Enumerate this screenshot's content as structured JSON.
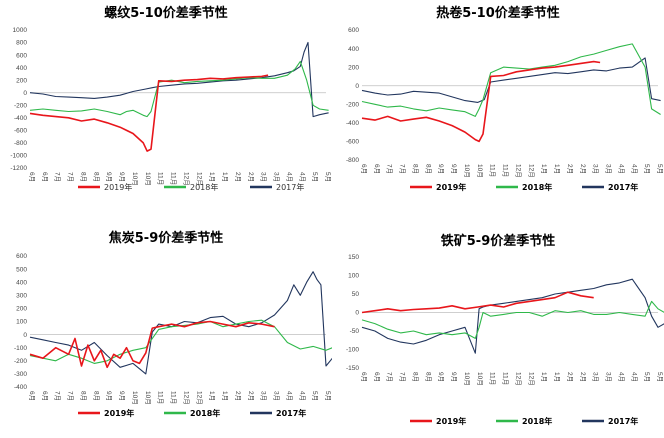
{
  "colors": {
    "y2019": "#e8161b",
    "y2018": "#2fb84a",
    "y2017": "#22365e",
    "zero": "#bfbfbf"
  },
  "chart_data": [
    {
      "id": "rebar",
      "type": "line",
      "title": "螺纹5-10价差季节性",
      "yticks": [
        "1000",
        "800",
        "600",
        "400",
        "200",
        "0",
        "-200",
        "-400",
        "-600",
        "-800",
        "-1000",
        "-1200"
      ],
      "ylim": [
        -1200,
        1000
      ],
      "xticks": [
        "6月",
        "6月",
        "7月",
        "7月",
        "8月",
        "8月",
        "9月",
        "9月",
        "10月",
        "10月",
        "11月",
        "11月",
        "12月",
        "12月",
        "1月",
        "1月",
        "2月",
        "2月",
        "3月",
        "3月",
        "4月",
        "4月",
        "5月",
        "5月"
      ],
      "legend": [
        "2019年",
        "2018年",
        "2017年"
      ],
      "legend_bold": false,
      "series": [
        {
          "name": "2019年",
          "color_key": "y2019",
          "x": [
            0,
            1,
            2,
            3,
            4,
            5,
            6,
            7,
            8,
            8.8,
            9.1,
            9.4,
            10,
            11,
            12,
            13,
            14,
            15,
            16,
            17,
            18,
            18.5
          ],
          "y": [
            -330,
            -360,
            -380,
            -400,
            -450,
            -420,
            -480,
            -550,
            -650,
            -800,
            -930,
            -900,
            190,
            180,
            200,
            210,
            230,
            220,
            240,
            250,
            260,
            280
          ]
        },
        {
          "name": "2018年",
          "color_key": "y2018",
          "x": [
            0,
            1,
            2,
            3,
            4,
            5,
            6,
            7,
            7.5,
            8,
            8.8,
            9.1,
            9.4,
            10,
            11,
            12,
            13,
            14,
            15,
            16,
            17,
            18,
            19,
            20,
            20.6,
            21,
            21.5,
            22,
            22.5,
            23.2
          ],
          "y": [
            -280,
            -260,
            -280,
            -300,
            -290,
            -260,
            -300,
            -350,
            -300,
            -280,
            -360,
            -380,
            -300,
            170,
            200,
            160,
            180,
            190,
            200,
            220,
            240,
            230,
            230,
            280,
            380,
            500,
            200,
            -200,
            -260,
            -280
          ]
        },
        {
          "name": "2017年",
          "color_key": "y2017",
          "x": [
            0,
            1,
            2,
            3,
            4,
            5,
            6,
            7,
            8,
            9,
            9.5,
            10,
            11,
            12,
            13,
            14,
            15,
            16,
            17,
            18,
            19,
            20,
            20.5,
            21,
            21.3,
            21.6,
            22,
            22.5,
            23.2
          ],
          "y": [
            0,
            -20,
            -60,
            -70,
            -80,
            -90,
            -70,
            -40,
            20,
            60,
            80,
            100,
            120,
            140,
            150,
            170,
            190,
            200,
            220,
            240,
            270,
            320,
            350,
            420,
            650,
            800,
            -380,
            -350,
            -320
          ]
        }
      ]
    },
    {
      "id": "hrc",
      "type": "line",
      "title": "热卷5-10价差季节性",
      "yticks": [
        "600",
        "400",
        "200",
        "0",
        "-200",
        "-400",
        "-600",
        "-800"
      ],
      "ylim": [
        -800,
        600
      ],
      "xticks": [
        "6月",
        "6月",
        "7月",
        "7月",
        "8月",
        "8月",
        "9月",
        "9月",
        "10月",
        "10月",
        "11月",
        "11月",
        "12月",
        "12月",
        "1月",
        "1月",
        "2月",
        "2月",
        "3月",
        "3月",
        "4月",
        "4月",
        "5月",
        "5月"
      ],
      "legend": [
        "2019年",
        "2018年",
        "2017年"
      ],
      "legend_bold": true,
      "series": [
        {
          "name": "2019年",
          "color_key": "y2019",
          "x": [
            0,
            1,
            2,
            3,
            4,
            5,
            6,
            7,
            8,
            8.8,
            9.1,
            9.4,
            10,
            11,
            12,
            13,
            14,
            15,
            16,
            17,
            18,
            18.5
          ],
          "y": [
            -350,
            -370,
            -330,
            -380,
            -360,
            -340,
            -380,
            -430,
            -500,
            -580,
            -600,
            -520,
            100,
            110,
            150,
            170,
            190,
            200,
            220,
            240,
            260,
            250
          ]
        },
        {
          "name": "2018年",
          "color_key": "y2018",
          "x": [
            0,
            1,
            2,
            3,
            4,
            5,
            6,
            7,
            8,
            8.8,
            9.1,
            9.4,
            10,
            11,
            12,
            13,
            14,
            15,
            16,
            17,
            18,
            19,
            20,
            21,
            22,
            22.5,
            23.2
          ],
          "y": [
            -170,
            -200,
            -230,
            -220,
            -250,
            -270,
            -240,
            -260,
            -280,
            -330,
            -250,
            -150,
            140,
            200,
            190,
            180,
            200,
            220,
            260,
            310,
            340,
            380,
            420,
            450,
            200,
            -250,
            -310
          ]
        },
        {
          "name": "2017年",
          "color_key": "y2017",
          "x": [
            0,
            1,
            2,
            3,
            4,
            5,
            6,
            7,
            8,
            9,
            9.5,
            10,
            11,
            12,
            13,
            14,
            15,
            16,
            17,
            18,
            19,
            20,
            21,
            22,
            22.5,
            23.2
          ],
          "y": [
            -50,
            -80,
            -100,
            -90,
            -60,
            -70,
            -80,
            -120,
            -160,
            -180,
            -150,
            40,
            60,
            80,
            100,
            120,
            140,
            130,
            150,
            170,
            160,
            190,
            200,
            300,
            -140,
            -160
          ]
        }
      ]
    },
    {
      "id": "coke",
      "type": "line",
      "title": "焦炭5-9价差季节性",
      "yticks": [
        "600",
        "500",
        "400",
        "300",
        "200",
        "100",
        "0",
        "-100",
        "-200",
        "-300",
        "-400"
      ],
      "ylim": [
        -400,
        600
      ],
      "xticks": [
        "6月",
        "6月",
        "7月",
        "7月",
        "8月",
        "8月",
        "9月",
        "9月",
        "10月",
        "10月",
        "11月",
        "11月",
        "12月",
        "12月",
        "1月",
        "1月",
        "2月",
        "2月",
        "3月",
        "3月",
        "4月",
        "4月",
        "5月",
        "5月"
      ],
      "legend": [
        "2019年",
        "2018年",
        "2017年"
      ],
      "legend_bold": true,
      "series": [
        {
          "name": "2019年",
          "color_key": "y2019",
          "x": [
            0,
            1,
            2,
            3,
            3.5,
            4,
            4.5,
            5,
            5.5,
            6,
            6.5,
            7,
            7.5,
            8,
            8.5,
            9,
            9.5,
            10,
            11,
            12,
            13,
            14,
            15,
            16,
            17,
            18,
            19
          ],
          "y": [
            -150,
            -180,
            -100,
            -150,
            -30,
            -240,
            -80,
            -200,
            -120,
            -250,
            -150,
            -180,
            -100,
            -200,
            -220,
            -140,
            50,
            60,
            80,
            60,
            90,
            100,
            80,
            60,
            90,
            80,
            60
          ]
        },
        {
          "name": "2018年",
          "color_key": "y2018",
          "x": [
            0,
            1,
            2,
            3,
            4,
            5,
            6,
            7,
            8,
            9,
            10,
            11,
            12,
            13,
            14,
            15,
            16,
            17,
            18,
            19,
            20,
            21,
            22,
            23,
            23.5
          ],
          "y": [
            -160,
            -180,
            -200,
            -150,
            -180,
            -220,
            -200,
            -150,
            -120,
            -100,
            40,
            60,
            70,
            80,
            100,
            60,
            80,
            100,
            110,
            60,
            -60,
            -110,
            -90,
            -120,
            -100
          ]
        },
        {
          "name": "2017年",
          "color_key": "y2017",
          "x": [
            0,
            1,
            2,
            3,
            4,
            5,
            6,
            7,
            8,
            9,
            9.5,
            10,
            11,
            12,
            13,
            14,
            15,
            16,
            17,
            18,
            19,
            20,
            20.5,
            21,
            21.5,
            22,
            22.3,
            22.6,
            23,
            23.5
          ],
          "y": [
            -20,
            -40,
            -60,
            -80,
            -120,
            -60,
            -160,
            -250,
            -220,
            -300,
            20,
            80,
            60,
            100,
            90,
            130,
            140,
            80,
            60,
            90,
            150,
            260,
            380,
            300,
            400,
            480,
            420,
            380,
            -240,
            -180
          ]
        }
      ]
    },
    {
      "id": "ore",
      "type": "line",
      "title": "铁矿5-9价差季节性",
      "yticks": [
        "150",
        "100",
        "50",
        "0",
        "-50",
        "-100",
        "-150"
      ],
      "ylim": [
        -150,
        150
      ],
      "xticks": [
        "6月",
        "6月",
        "7月",
        "7月",
        "8月",
        "8月",
        "9月",
        "9月",
        "10月",
        "10月",
        "11月",
        "11月",
        "12月",
        "12月",
        "1月",
        "1月",
        "2月",
        "2月",
        "3月",
        "3月",
        "4月",
        "4月",
        "5月",
        "5月"
      ],
      "legend": [
        "2019年",
        "2018年",
        "2017年"
      ],
      "legend_bold": true,
      "series": [
        {
          "name": "2019年",
          "color_key": "y2019",
          "x": [
            0,
            1,
            2,
            3,
            4,
            5,
            6,
            7,
            8,
            9,
            10,
            11,
            12,
            13,
            14,
            15,
            16,
            17,
            18
          ],
          "y": [
            0,
            5,
            10,
            5,
            8,
            10,
            12,
            18,
            10,
            15,
            20,
            15,
            25,
            30,
            35,
            40,
            55,
            45,
            40
          ]
        },
        {
          "name": "2018年",
          "color_key": "y2018",
          "x": [
            0,
            1,
            2,
            3,
            4,
            5,
            6,
            7,
            8,
            8.8,
            9.1,
            9.4,
            10,
            11,
            12,
            13,
            14,
            15,
            16,
            17,
            18,
            19,
            20,
            21,
            22,
            22.5,
            23,
            23.5
          ],
          "y": [
            -20,
            -30,
            -45,
            -55,
            -50,
            -60,
            -55,
            -60,
            -55,
            -70,
            -40,
            0,
            -10,
            -5,
            0,
            0,
            -10,
            5,
            0,
            5,
            -5,
            -5,
            0,
            -5,
            -10,
            30,
            10,
            0
          ]
        },
        {
          "name": "2017年",
          "color_key": "y2017",
          "x": [
            0,
            1,
            2,
            3,
            4,
            5,
            6,
            7,
            8,
            8.8,
            9.1,
            9.4,
            10,
            11,
            12,
            13,
            14,
            15,
            16,
            17,
            18,
            19,
            20,
            21,
            22,
            22.5,
            23,
            23.5
          ],
          "y": [
            -40,
            -50,
            -70,
            -80,
            -85,
            -75,
            -60,
            -50,
            -40,
            -110,
            10,
            15,
            20,
            25,
            30,
            35,
            40,
            50,
            55,
            60,
            65,
            75,
            80,
            90,
            40,
            -10,
            -40,
            -30
          ]
        }
      ]
    }
  ]
}
